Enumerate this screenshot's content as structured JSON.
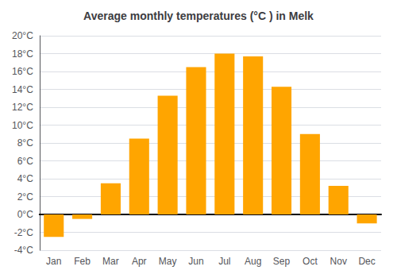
{
  "chart_data": {
    "type": "bar",
    "title": "Average monthly temperatures (°C ) in Melk",
    "categories": [
      "Jan",
      "Feb",
      "Mar",
      "Apr",
      "May",
      "Jun",
      "Jul",
      "Aug",
      "Sep",
      "Oct",
      "Nov",
      "Dec"
    ],
    "values": [
      -2.5,
      -0.5,
      3.5,
      8.5,
      13.3,
      16.5,
      18.0,
      17.7,
      14.3,
      9.0,
      3.2,
      -1.0
    ],
    "color": "#FFA500",
    "ylim": [
      -4,
      20
    ],
    "yticks": [
      {
        "value": -4,
        "label": "-4°C"
      },
      {
        "value": -2,
        "label": "-2°C"
      },
      {
        "value": 0,
        "label": "0°C"
      },
      {
        "value": 2,
        "label": "2°C"
      },
      {
        "value": 4,
        "label": "4°C"
      },
      {
        "value": 6,
        "label": "6°C"
      },
      {
        "value": 8,
        "label": "8°C"
      },
      {
        "value": 10,
        "label": "10°C"
      },
      {
        "value": 12,
        "label": "12°C"
      },
      {
        "value": 14,
        "label": "14°C"
      },
      {
        "value": 16,
        "label": "16°C"
      },
      {
        "value": 18,
        "label": "18°C"
      },
      {
        "value": 20,
        "label": "20°C"
      }
    ],
    "grid": true
  }
}
